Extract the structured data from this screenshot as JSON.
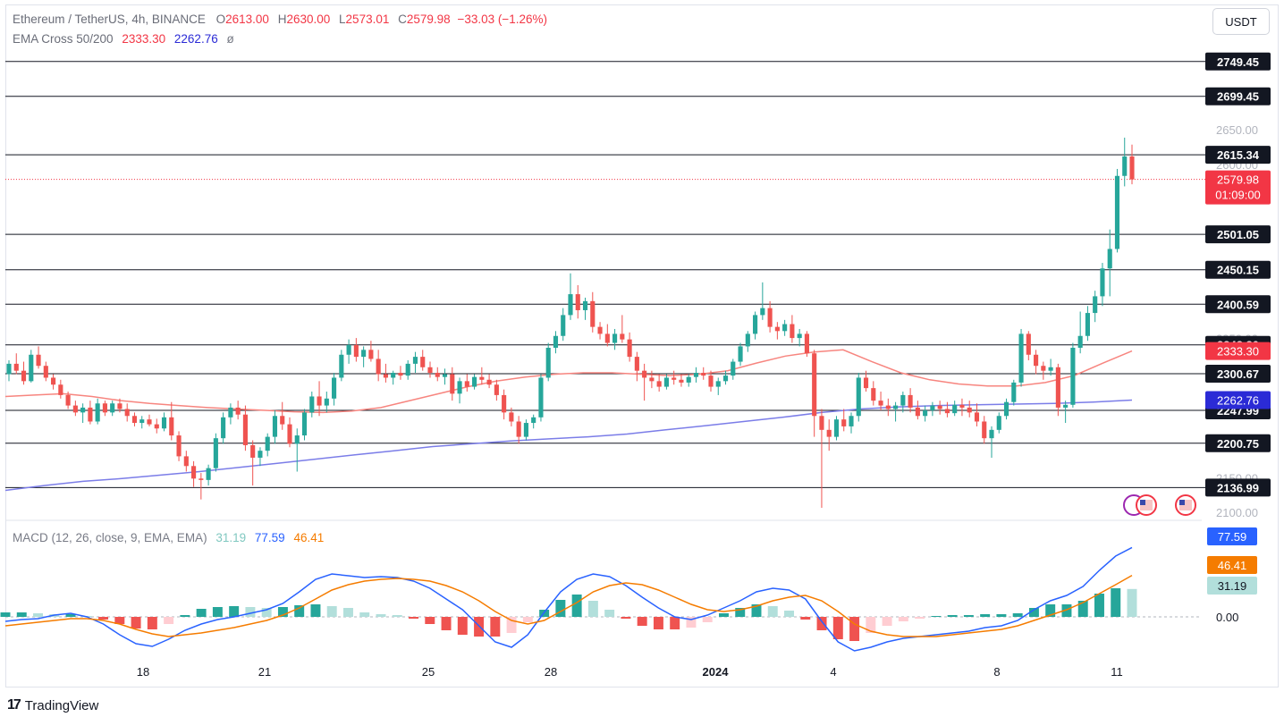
{
  "header": {
    "symbol": "Ethereum / TetherUS, 4h, BINANCE",
    "o_label": "O",
    "o": "2613.00",
    "h_label": "H",
    "h": "2630.00",
    "l_label": "L",
    "l": "2573.01",
    "c_label": "C",
    "c": "2579.98",
    "change": "−33.03 (−1.26%)",
    "ema_label": "EMA Cross 50/200",
    "ema50": "2333.30",
    "ema200": "2262.76",
    "ema_extra": "ø"
  },
  "currency": "USDT",
  "macd_legend": {
    "label": "MACD (12, 26, close, 9, EMA, EMA)",
    "hist": "31.19",
    "macd": "77.59",
    "signal": "46.41"
  },
  "footer": {
    "logo": "17",
    "brand": "TradingView"
  },
  "colors": {
    "up": "#26a69a",
    "down": "#ef5350",
    "ema50": "#f7857f",
    "ema200": "#7b7de8",
    "macd": "#2962ff",
    "signal": "#f57c00",
    "hist_up": "#26a69a",
    "hist_up_light": "#b2dfdb",
    "hist_down": "#ef5350",
    "hist_down_light": "#ffcdd2",
    "level_tag": "#131722",
    "price_tag": "#f23645"
  },
  "chart_data": {
    "type": "candlestick",
    "price_axis": {
      "range": [
        2090,
        2780
      ],
      "ticks": [
        "2650.00",
        "2600.00",
        "2350.00",
        "2150.00",
        "2100.00"
      ]
    },
    "time_axis": {
      "ticks": [
        "18",
        "21",
        "25",
        "28",
        "2024",
        "4",
        "8",
        "11"
      ]
    },
    "levels": [
      "2749.45",
      "2699.45",
      "2615.34",
      "2501.05",
      "2450.15",
      "2400.59",
      "2342.20",
      "2300.67",
      "2247.99",
      "2200.75",
      "2136.99"
    ],
    "last_price": {
      "value": "2579.98",
      "countdown": "01:09:00"
    },
    "ema_tags": {
      "ema50": "2333.30",
      "ema200": "2262.76"
    },
    "candles": [
      [
        2300,
        2320,
        2290,
        2315
      ],
      [
        2315,
        2330,
        2300,
        2305
      ],
      [
        2305,
        2318,
        2285,
        2290
      ],
      [
        2290,
        2335,
        2288,
        2328
      ],
      [
        2328,
        2340,
        2308,
        2312
      ],
      [
        2312,
        2318,
        2290,
        2295
      ],
      [
        2295,
        2300,
        2278,
        2285
      ],
      [
        2285,
        2292,
        2265,
        2270
      ],
      [
        2270,
        2275,
        2250,
        2255
      ],
      [
        2255,
        2262,
        2240,
        2245
      ],
      [
        2245,
        2258,
        2230,
        2252
      ],
      [
        2252,
        2262,
        2228,
        2232
      ],
      [
        2232,
        2265,
        2228,
        2258
      ],
      [
        2258,
        2262,
        2240,
        2245
      ],
      [
        2245,
        2262,
        2240,
        2258
      ],
      [
        2258,
        2265,
        2245,
        2250
      ],
      [
        2250,
        2258,
        2232,
        2240
      ],
      [
        2240,
        2245,
        2225,
        2230
      ],
      [
        2230,
        2240,
        2222,
        2235
      ],
      [
        2235,
        2242,
        2225,
        2228
      ],
      [
        2228,
        2236,
        2215,
        2222
      ],
      [
        2222,
        2245,
        2218,
        2238
      ],
      [
        2238,
        2260,
        2205,
        2212
      ],
      [
        2212,
        2218,
        2175,
        2182
      ],
      [
        2182,
        2190,
        2160,
        2168
      ],
      [
        2168,
        2175,
        2138,
        2150
      ],
      [
        2150,
        2158,
        2120,
        2148
      ],
      [
        2148,
        2170,
        2140,
        2165
      ],
      [
        2165,
        2215,
        2160,
        2208
      ],
      [
        2208,
        2245,
        2200,
        2238
      ],
      [
        2238,
        2258,
        2228,
        2252
      ],
      [
        2252,
        2262,
        2235,
        2242
      ],
      [
        2242,
        2255,
        2190,
        2198
      ],
      [
        2198,
        2205,
        2140,
        2180
      ],
      [
        2180,
        2195,
        2168,
        2190
      ],
      [
        2190,
        2215,
        2182,
        2210
      ],
      [
        2210,
        2248,
        2200,
        2240
      ],
      [
        2240,
        2260,
        2220,
        2228
      ],
      [
        2228,
        2238,
        2195,
        2200
      ],
      [
        2200,
        2222,
        2160,
        2212
      ],
      [
        2212,
        2250,
        2205,
        2245
      ],
      [
        2245,
        2275,
        2238,
        2268
      ],
      [
        2268,
        2290,
        2240,
        2255
      ],
      [
        2255,
        2275,
        2245,
        2265
      ],
      [
        2265,
        2302,
        2255,
        2295
      ],
      [
        2295,
        2335,
        2290,
        2328
      ],
      [
        2328,
        2350,
        2315,
        2342
      ],
      [
        2342,
        2352,
        2318,
        2325
      ],
      [
        2325,
        2340,
        2310,
        2335
      ],
      [
        2335,
        2348,
        2318,
        2322
      ],
      [
        2322,
        2335,
        2290,
        2300
      ],
      [
        2300,
        2315,
        2288,
        2295
      ],
      [
        2295,
        2305,
        2285,
        2302
      ],
      [
        2302,
        2312,
        2292,
        2298
      ],
      [
        2298,
        2320,
        2292,
        2315
      ],
      [
        2315,
        2332,
        2302,
        2325
      ],
      [
        2325,
        2335,
        2305,
        2310
      ],
      [
        2310,
        2318,
        2295,
        2302
      ],
      [
        2302,
        2310,
        2290,
        2296
      ],
      [
        2296,
        2308,
        2285,
        2300
      ],
      [
        2300,
        2310,
        2262,
        2272
      ],
      [
        2272,
        2295,
        2258,
        2290
      ],
      [
        2290,
        2300,
        2275,
        2282
      ],
      [
        2282,
        2300,
        2278,
        2296
      ],
      [
        2296,
        2310,
        2285,
        2292
      ],
      [
        2292,
        2300,
        2280,
        2285
      ],
      [
        2285,
        2292,
        2262,
        2270
      ],
      [
        2270,
        2278,
        2235,
        2245
      ],
      [
        2245,
        2252,
        2225,
        2232
      ],
      [
        2232,
        2240,
        2200,
        2210
      ],
      [
        2210,
        2235,
        2205,
        2230
      ],
      [
        2230,
        2242,
        2222,
        2238
      ],
      [
        2238,
        2300,
        2232,
        2295
      ],
      [
        2295,
        2345,
        2290,
        2338
      ],
      [
        2338,
        2362,
        2330,
        2355
      ],
      [
        2355,
        2395,
        2348,
        2385
      ],
      [
        2385,
        2445,
        2378,
        2415
      ],
      [
        2415,
        2428,
        2380,
        2392
      ],
      [
        2392,
        2410,
        2378,
        2405
      ],
      [
        2405,
        2418,
        2360,
        2368
      ],
      [
        2368,
        2375,
        2350,
        2358
      ],
      [
        2358,
        2372,
        2340,
        2345
      ],
      [
        2345,
        2365,
        2335,
        2358
      ],
      [
        2358,
        2385,
        2345,
        2350
      ],
      [
        2350,
        2360,
        2318,
        2325
      ],
      [
        2325,
        2332,
        2290,
        2305
      ],
      [
        2305,
        2315,
        2262,
        2295
      ],
      [
        2295,
        2305,
        2280,
        2290
      ],
      [
        2290,
        2300,
        2275,
        2282
      ],
      [
        2282,
        2300,
        2278,
        2295
      ],
      [
        2295,
        2305,
        2285,
        2292
      ],
      [
        2292,
        2300,
        2282,
        2288
      ],
      [
        2288,
        2300,
        2282,
        2296
      ],
      [
        2296,
        2310,
        2288,
        2302
      ],
      [
        2302,
        2310,
        2292,
        2298
      ],
      [
        2298,
        2305,
        2275,
        2282
      ],
      [
        2282,
        2295,
        2270,
        2290
      ],
      [
        2290,
        2305,
        2285,
        2298
      ],
      [
        2298,
        2322,
        2292,
        2318
      ],
      [
        2318,
        2345,
        2312,
        2340
      ],
      [
        2340,
        2362,
        2332,
        2358
      ],
      [
        2358,
        2390,
        2350,
        2385
      ],
      [
        2385,
        2432,
        2378,
        2395
      ],
      [
        2395,
        2405,
        2360,
        2368
      ],
      [
        2368,
        2375,
        2350,
        2362
      ],
      [
        2362,
        2378,
        2355,
        2372
      ],
      [
        2372,
        2385,
        2345,
        2352
      ],
      [
        2352,
        2365,
        2340,
        2358
      ],
      [
        2358,
        2362,
        2325,
        2330
      ],
      [
        2330,
        2335,
        2210,
        2240
      ],
      [
        2240,
        2250,
        2108,
        2220
      ],
      [
        2220,
        2235,
        2190,
        2210
      ],
      [
        2210,
        2240,
        2205,
        2235
      ],
      [
        2235,
        2250,
        2218,
        2225
      ],
      [
        2225,
        2245,
        2215,
        2240
      ],
      [
        2240,
        2302,
        2232,
        2295
      ],
      [
        2295,
        2305,
        2275,
        2280
      ],
      [
        2280,
        2290,
        2255,
        2262
      ],
      [
        2262,
        2275,
        2248,
        2255
      ],
      [
        2255,
        2265,
        2240,
        2250
      ],
      [
        2250,
        2260,
        2232,
        2255
      ],
      [
        2255,
        2275,
        2245,
        2270
      ],
      [
        2270,
        2280,
        2245,
        2252
      ],
      [
        2252,
        2262,
        2235,
        2240
      ],
      [
        2240,
        2255,
        2232,
        2248
      ],
      [
        2248,
        2260,
        2240,
        2255
      ],
      [
        2255,
        2262,
        2242,
        2250
      ],
      [
        2250,
        2260,
        2238,
        2244
      ],
      [
        2244,
        2262,
        2240,
        2256
      ],
      [
        2256,
        2265,
        2240,
        2252
      ],
      [
        2252,
        2262,
        2238,
        2245
      ],
      [
        2245,
        2258,
        2225,
        2232
      ],
      [
        2232,
        2240,
        2200,
        2208
      ],
      [
        2208,
        2225,
        2180,
        2220
      ],
      [
        2220,
        2245,
        2215,
        2240
      ],
      [
        2240,
        2265,
        2235,
        2260
      ],
      [
        2260,
        2292,
        2255,
        2288
      ],
      [
        2288,
        2365,
        2282,
        2358
      ],
      [
        2358,
        2362,
        2320,
        2328
      ],
      [
        2328,
        2335,
        2300,
        2312
      ],
      [
        2312,
        2318,
        2292,
        2305
      ],
      [
        2305,
        2322,
        2298,
        2310
      ],
      [
        2310,
        2315,
        2240,
        2252
      ],
      [
        2252,
        2262,
        2230,
        2256
      ],
      [
        2256,
        2345,
        2252,
        2338
      ],
      [
        2338,
        2390,
        2330,
        2355
      ],
      [
        2355,
        2398,
        2348,
        2388
      ],
      [
        2388,
        2420,
        2375,
        2412
      ],
      [
        2412,
        2460,
        2398,
        2452
      ],
      [
        2452,
        2508,
        2412,
        2480
      ],
      [
        2480,
        2595,
        2475,
        2585
      ],
      [
        2585,
        2640,
        2570,
        2613
      ],
      [
        2613,
        2630,
        2573,
        2579.98
      ]
    ],
    "ema50": [
      2268,
      2270,
      2272,
      2268,
      2262,
      2258,
      2255,
      2252,
      2250,
      2248,
      2246,
      2245,
      2247,
      2252,
      2262,
      2272,
      2282,
      2290,
      2296,
      2300,
      2302,
      2302,
      2300,
      2298,
      2300,
      2305,
      2316,
      2326,
      2332,
      2335,
      2318,
      2302,
      2292,
      2286,
      2283,
      2283,
      2288,
      2298,
      2316,
      2333.3
    ],
    "ema200": [
      2133,
      2140,
      2146,
      2150,
      2155,
      2160,
      2166,
      2172,
      2178,
      2184,
      2190,
      2196,
      2200,
      2204,
      2207,
      2210,
      2214,
      2220,
      2226,
      2232,
      2238,
      2245,
      2250,
      2253,
      2255,
      2256,
      2257,
      2258,
      2260,
      2262.76
    ],
    "macd": {
      "zero_label": "0.00",
      "macd": [
        -5,
        -3,
        -2,
        2,
        4,
        0,
        -8,
        -20,
        -30,
        -33,
        -25,
        -15,
        -8,
        -3,
        0,
        4,
        8,
        15,
        28,
        42,
        48,
        46,
        44,
        45,
        44,
        40,
        32,
        20,
        8,
        -10,
        -28,
        -34,
        -20,
        5,
        28,
        42,
        48,
        45,
        35,
        22,
        10,
        0,
        -3,
        2,
        10,
        18,
        28,
        32,
        30,
        20,
        -5,
        -28,
        -38,
        -34,
        -28,
        -24,
        -22,
        -20,
        -18,
        -16,
        -12,
        -10,
        -4,
        8,
        18,
        24,
        34,
        52,
        68,
        77.59
      ],
      "signal": [
        -10,
        -8,
        -6,
        -4,
        -2,
        -2,
        -4,
        -8,
        -14,
        -19,
        -22,
        -20,
        -18,
        -15,
        -12,
        -8,
        -4,
        2,
        10,
        20,
        30,
        36,
        40,
        42,
        43,
        42,
        40,
        35,
        28,
        18,
        6,
        -4,
        -8,
        -4,
        6,
        16,
        28,
        35,
        38,
        36,
        30,
        22,
        14,
        8,
        6,
        8,
        12,
        18,
        22,
        24,
        18,
        6,
        -8,
        -16,
        -20,
        -22,
        -22,
        -22,
        -20,
        -18,
        -16,
        -14,
        -10,
        -4,
        2,
        8,
        16,
        26,
        36,
        46.41
      ],
      "histogram": [
        5,
        5,
        4,
        3,
        3,
        1,
        -3,
        -8,
        -13,
        -14,
        -8,
        2,
        9,
        11,
        12,
        11,
        10,
        11,
        13,
        14,
        12,
        10,
        5,
        3,
        2,
        -2,
        -8,
        -15,
        -20,
        -22,
        -22,
        -18,
        -6,
        8,
        19,
        25,
        18,
        8,
        -2,
        -10,
        -14,
        -14,
        -12,
        -6,
        4,
        10,
        14,
        12,
        7,
        -3,
        -15,
        -25,
        -27,
        -18,
        -10,
        -5,
        -2,
        1,
        2,
        2,
        3,
        3,
        4,
        10,
        14,
        14,
        18,
        26,
        32,
        31.19
      ]
    }
  }
}
